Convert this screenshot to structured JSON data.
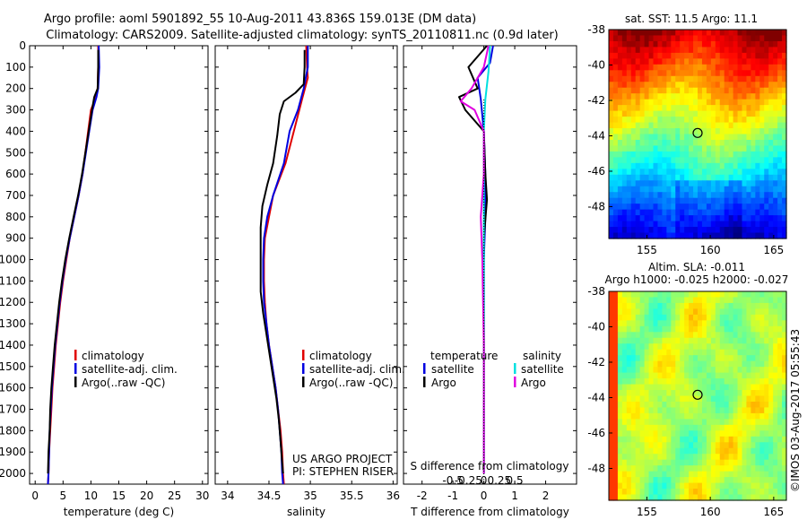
{
  "header": {
    "line1": "Argo profile: aoml 5901892_55 10-Aug-2011 43.836S 159.013E (DM data)",
    "line2": "Climatology: CARS2009. Satellite-adjusted climatology: synTS_20110811.nc (0.9d later)"
  },
  "colors": {
    "climatology": "#e00000",
    "satellite": "#0000e0",
    "argo": "#000000",
    "salinity_satellite": "#00e0e0",
    "salinity_argo": "#e000e0"
  },
  "footer": {
    "project": "US ARGO PROJECT",
    "pi": "PI: STEPHEN RISER",
    "credit": "©IMOS 03-Aug-2017 05:55:43"
  },
  "chart_data": [
    {
      "type": "line",
      "xlabel": "temperature (deg C)",
      "xlim": [
        -1,
        31
      ],
      "xticks": [
        "0",
        "5",
        "10",
        "15",
        "20",
        "25",
        "30"
      ],
      "ylim": [
        2050,
        0
      ],
      "yticks": [
        "0",
        "100",
        "200",
        "300",
        "400",
        "500",
        "600",
        "700",
        "800",
        "900",
        "1000",
        "1100",
        "1200",
        "1300",
        "1400",
        "1500",
        "1600",
        "1700",
        "1800",
        "1900",
        "2000"
      ],
      "legend": [
        "climatology",
        "satellite-adj. clim.",
        "Argo(..raw -QC)"
      ],
      "series": [
        {
          "name": "climatology",
          "color": "#e00000",
          "points": [
            [
              11.3,
              0
            ],
            [
              11.3,
              100
            ],
            [
              11.2,
              200
            ],
            [
              10.9,
              240
            ],
            [
              10.0,
              300
            ],
            [
              9.5,
              400
            ],
            [
              9.0,
              500
            ],
            [
              8.5,
              600
            ],
            [
              7.8,
              700
            ],
            [
              7.0,
              800
            ],
            [
              6.2,
              900
            ],
            [
              5.6,
              1000
            ],
            [
              5.0,
              1100
            ],
            [
              4.5,
              1200
            ],
            [
              4.1,
              1300
            ],
            [
              3.7,
              1400
            ],
            [
              3.4,
              1500
            ],
            [
              3.1,
              1600
            ],
            [
              2.9,
              1700
            ],
            [
              2.7,
              1800
            ],
            [
              2.5,
              1900
            ],
            [
              2.4,
              2000
            ],
            [
              2.3,
              2050
            ]
          ]
        },
        {
          "name": "satellite-adj. clim.",
          "color": "#0000e0",
          "points": [
            [
              11.4,
              0
            ],
            [
              11.5,
              100
            ],
            [
              11.3,
              200
            ],
            [
              11.0,
              240
            ],
            [
              10.3,
              300
            ],
            [
              9.7,
              400
            ],
            [
              9.1,
              500
            ],
            [
              8.5,
              600
            ],
            [
              7.8,
              700
            ],
            [
              7.0,
              800
            ],
            [
              6.2,
              900
            ],
            [
              5.5,
              1000
            ],
            [
              4.9,
              1100
            ],
            [
              4.4,
              1200
            ],
            [
              4.0,
              1300
            ],
            [
              3.6,
              1400
            ],
            [
              3.3,
              1500
            ],
            [
              3.0,
              1600
            ],
            [
              2.8,
              1700
            ],
            [
              2.6,
              1800
            ],
            [
              2.5,
              1900
            ],
            [
              2.4,
              2000
            ],
            [
              2.3,
              2050
            ]
          ]
        },
        {
          "name": "Argo(..raw -QC)",
          "color": "#000000",
          "points": [
            [
              11.3,
              20
            ],
            [
              11.3,
              100
            ],
            [
              11.2,
              200
            ],
            [
              10.6,
              240
            ],
            [
              10.2,
              300
            ],
            [
              9.6,
              400
            ],
            [
              9.0,
              500
            ],
            [
              8.4,
              600
            ],
            [
              7.7,
              700
            ],
            [
              6.9,
              800
            ],
            [
              6.1,
              900
            ],
            [
              5.4,
              1000
            ],
            [
              4.8,
              1100
            ],
            [
              4.3,
              1200
            ],
            [
              3.9,
              1300
            ],
            [
              3.5,
              1400
            ],
            [
              3.2,
              1500
            ],
            [
              2.9,
              1600
            ],
            [
              2.7,
              1700
            ],
            [
              2.6,
              1800
            ],
            [
              2.4,
              1900
            ],
            [
              2.3,
              2000
            ]
          ]
        }
      ]
    },
    {
      "type": "line",
      "xlabel": "salinity",
      "xlim": [
        33.85,
        36.05
      ],
      "xticks": [
        "34",
        "34.5",
        "35",
        "35.5",
        "36"
      ],
      "ylim": [
        2050,
        0
      ],
      "legend": [
        "climatology",
        "satellite-adj. clim.",
        "Argo(..raw -QC)"
      ],
      "series": [
        {
          "name": "climatology",
          "color": "#e00000",
          "points": [
            [
              34.95,
              0
            ],
            [
              34.96,
              100
            ],
            [
              34.97,
              150
            ],
            [
              34.9,
              250
            ],
            [
              34.8,
              400
            ],
            [
              34.7,
              550
            ],
            [
              34.55,
              700
            ],
            [
              34.5,
              800
            ],
            [
              34.45,
              900
            ],
            [
              34.44,
              1000
            ],
            [
              34.44,
              1100
            ],
            [
              34.45,
              1200
            ],
            [
              34.47,
              1300
            ],
            [
              34.5,
              1400
            ],
            [
              34.54,
              1500
            ],
            [
              34.58,
              1600
            ],
            [
              34.61,
              1700
            ],
            [
              34.64,
              1800
            ],
            [
              34.66,
              1900
            ],
            [
              34.67,
              2000
            ],
            [
              34.68,
              2050
            ]
          ]
        },
        {
          "name": "satellite-adj. clim.",
          "color": "#0000e0",
          "points": [
            [
              34.97,
              0
            ],
            [
              34.97,
              100
            ],
            [
              34.92,
              200
            ],
            [
              34.85,
              300
            ],
            [
              34.75,
              400
            ],
            [
              34.68,
              550
            ],
            [
              34.55,
              700
            ],
            [
              34.48,
              800
            ],
            [
              34.44,
              900
            ],
            [
              34.43,
              1000
            ],
            [
              34.43,
              1100
            ],
            [
              34.44,
              1200
            ],
            [
              34.47,
              1300
            ],
            [
              34.5,
              1400
            ],
            [
              34.54,
              1500
            ],
            [
              34.58,
              1600
            ],
            [
              34.61,
              1700
            ],
            [
              34.63,
              1800
            ],
            [
              34.65,
              1900
            ],
            [
              34.66,
              2000
            ],
            [
              34.67,
              2050
            ]
          ]
        },
        {
          "name": "Argo(..raw -QC)",
          "color": "#000000",
          "points": [
            [
              34.93,
              20
            ],
            [
              34.93,
              100
            ],
            [
              34.92,
              180
            ],
            [
              34.82,
              220
            ],
            [
              34.68,
              260
            ],
            [
              34.63,
              320
            ],
            [
              34.6,
              420
            ],
            [
              34.55,
              550
            ],
            [
              34.48,
              650
            ],
            [
              34.42,
              750
            ],
            [
              34.4,
              850
            ],
            [
              34.4,
              950
            ],
            [
              34.4,
              1050
            ],
            [
              34.4,
              1150
            ],
            [
              34.43,
              1250
            ],
            [
              34.47,
              1350
            ],
            [
              34.51,
              1450
            ],
            [
              34.55,
              1550
            ],
            [
              34.59,
              1650
            ],
            [
              34.62,
              1750
            ],
            [
              34.64,
              1850
            ],
            [
              34.66,
              1950
            ],
            [
              34.67,
              2000
            ]
          ]
        }
      ]
    },
    {
      "type": "line",
      "xlabel": "T difference from climatology",
      "xlabel_top": "S difference from climatology",
      "xlim": [
        -2.6,
        3.0
      ],
      "xticks": [
        "-2",
        "-1",
        "0",
        "1",
        "2"
      ],
      "xticks_top": [
        "-0.5",
        "-0.25",
        "0",
        "0.25",
        "0.5"
      ],
      "ylim": [
        2050,
        0
      ],
      "legend": {
        "temperature_header": "temperature",
        "salinity_header": "salinity",
        "temperature_items": [
          "satellite",
          "Argo"
        ],
        "salinity_items": [
          "satellite",
          "Argo"
        ]
      },
      "series": [
        {
          "name": "T satellite",
          "color": "#0000e0",
          "points": [
            [
              0.3,
              0
            ],
            [
              0.2,
              80
            ],
            [
              -0.2,
              150
            ],
            [
              -0.1,
              250
            ],
            [
              0.0,
              400
            ],
            [
              0.05,
              600
            ],
            [
              0.05,
              800
            ],
            [
              0.0,
              1000
            ],
            [
              0.0,
              1500
            ],
            [
              0.0,
              2000
            ]
          ]
        },
        {
          "name": "T Argo",
          "color": "#000000",
          "points": [
            [
              0.1,
              0
            ],
            [
              -0.5,
              100
            ],
            [
              -0.2,
              200
            ],
            [
              -0.8,
              240
            ],
            [
              -0.6,
              300
            ],
            [
              0.0,
              400
            ],
            [
              0.05,
              600
            ],
            [
              0.1,
              720
            ],
            [
              0.0,
              900
            ],
            [
              0.0,
              1200
            ],
            [
              0.0,
              1600
            ],
            [
              0.0,
              2000
            ]
          ]
        },
        {
          "name": "S satellite",
          "color": "#00e0e0",
          "points": [
            [
              0.2,
              0
            ],
            [
              0.15,
              120
            ],
            [
              0.05,
              250
            ],
            [
              0.0,
              400
            ],
            [
              0.0,
              800
            ],
            [
              0.0,
              1200
            ],
            [
              0.0,
              1600
            ],
            [
              0.0,
              2000
            ]
          ]
        },
        {
          "name": "S Argo",
          "color": "#e000e0",
          "points": [
            [
              0.15,
              0
            ],
            [
              0.0,
              100
            ],
            [
              -0.4,
              200
            ],
            [
              -0.75,
              260
            ],
            [
              -0.3,
              300
            ],
            [
              0.0,
              400
            ],
            [
              0.0,
              600
            ],
            [
              -0.1,
              800
            ],
            [
              -0.05,
              1000
            ],
            [
              0.0,
              1400
            ],
            [
              0.0,
              2000
            ]
          ]
        }
      ]
    },
    {
      "type": "heatmap",
      "title": "sat. SST: 11.5 Argo: 11.1",
      "xlim": [
        152,
        166
      ],
      "ylim": [
        -49.8,
        -38
      ],
      "xticks": [
        "155",
        "160",
        "165"
      ],
      "yticks": [
        "-38",
        "-40",
        "-42",
        "-44",
        "-46",
        "-48"
      ],
      "profile_location": [
        159.0,
        -43.84
      ]
    },
    {
      "type": "heatmap",
      "title": "Altim. SLA: -0.011",
      "subtitle": "Argo h1000: -0.025 h2000: -0.027",
      "xlim": [
        152,
        166
      ],
      "ylim": [
        -49.8,
        -38
      ],
      "xticks": [
        "155",
        "160",
        "165"
      ],
      "yticks": [
        "-38",
        "-40",
        "-42",
        "-44",
        "-46",
        "-48"
      ],
      "profile_location": [
        159.0,
        -43.84
      ]
    }
  ]
}
